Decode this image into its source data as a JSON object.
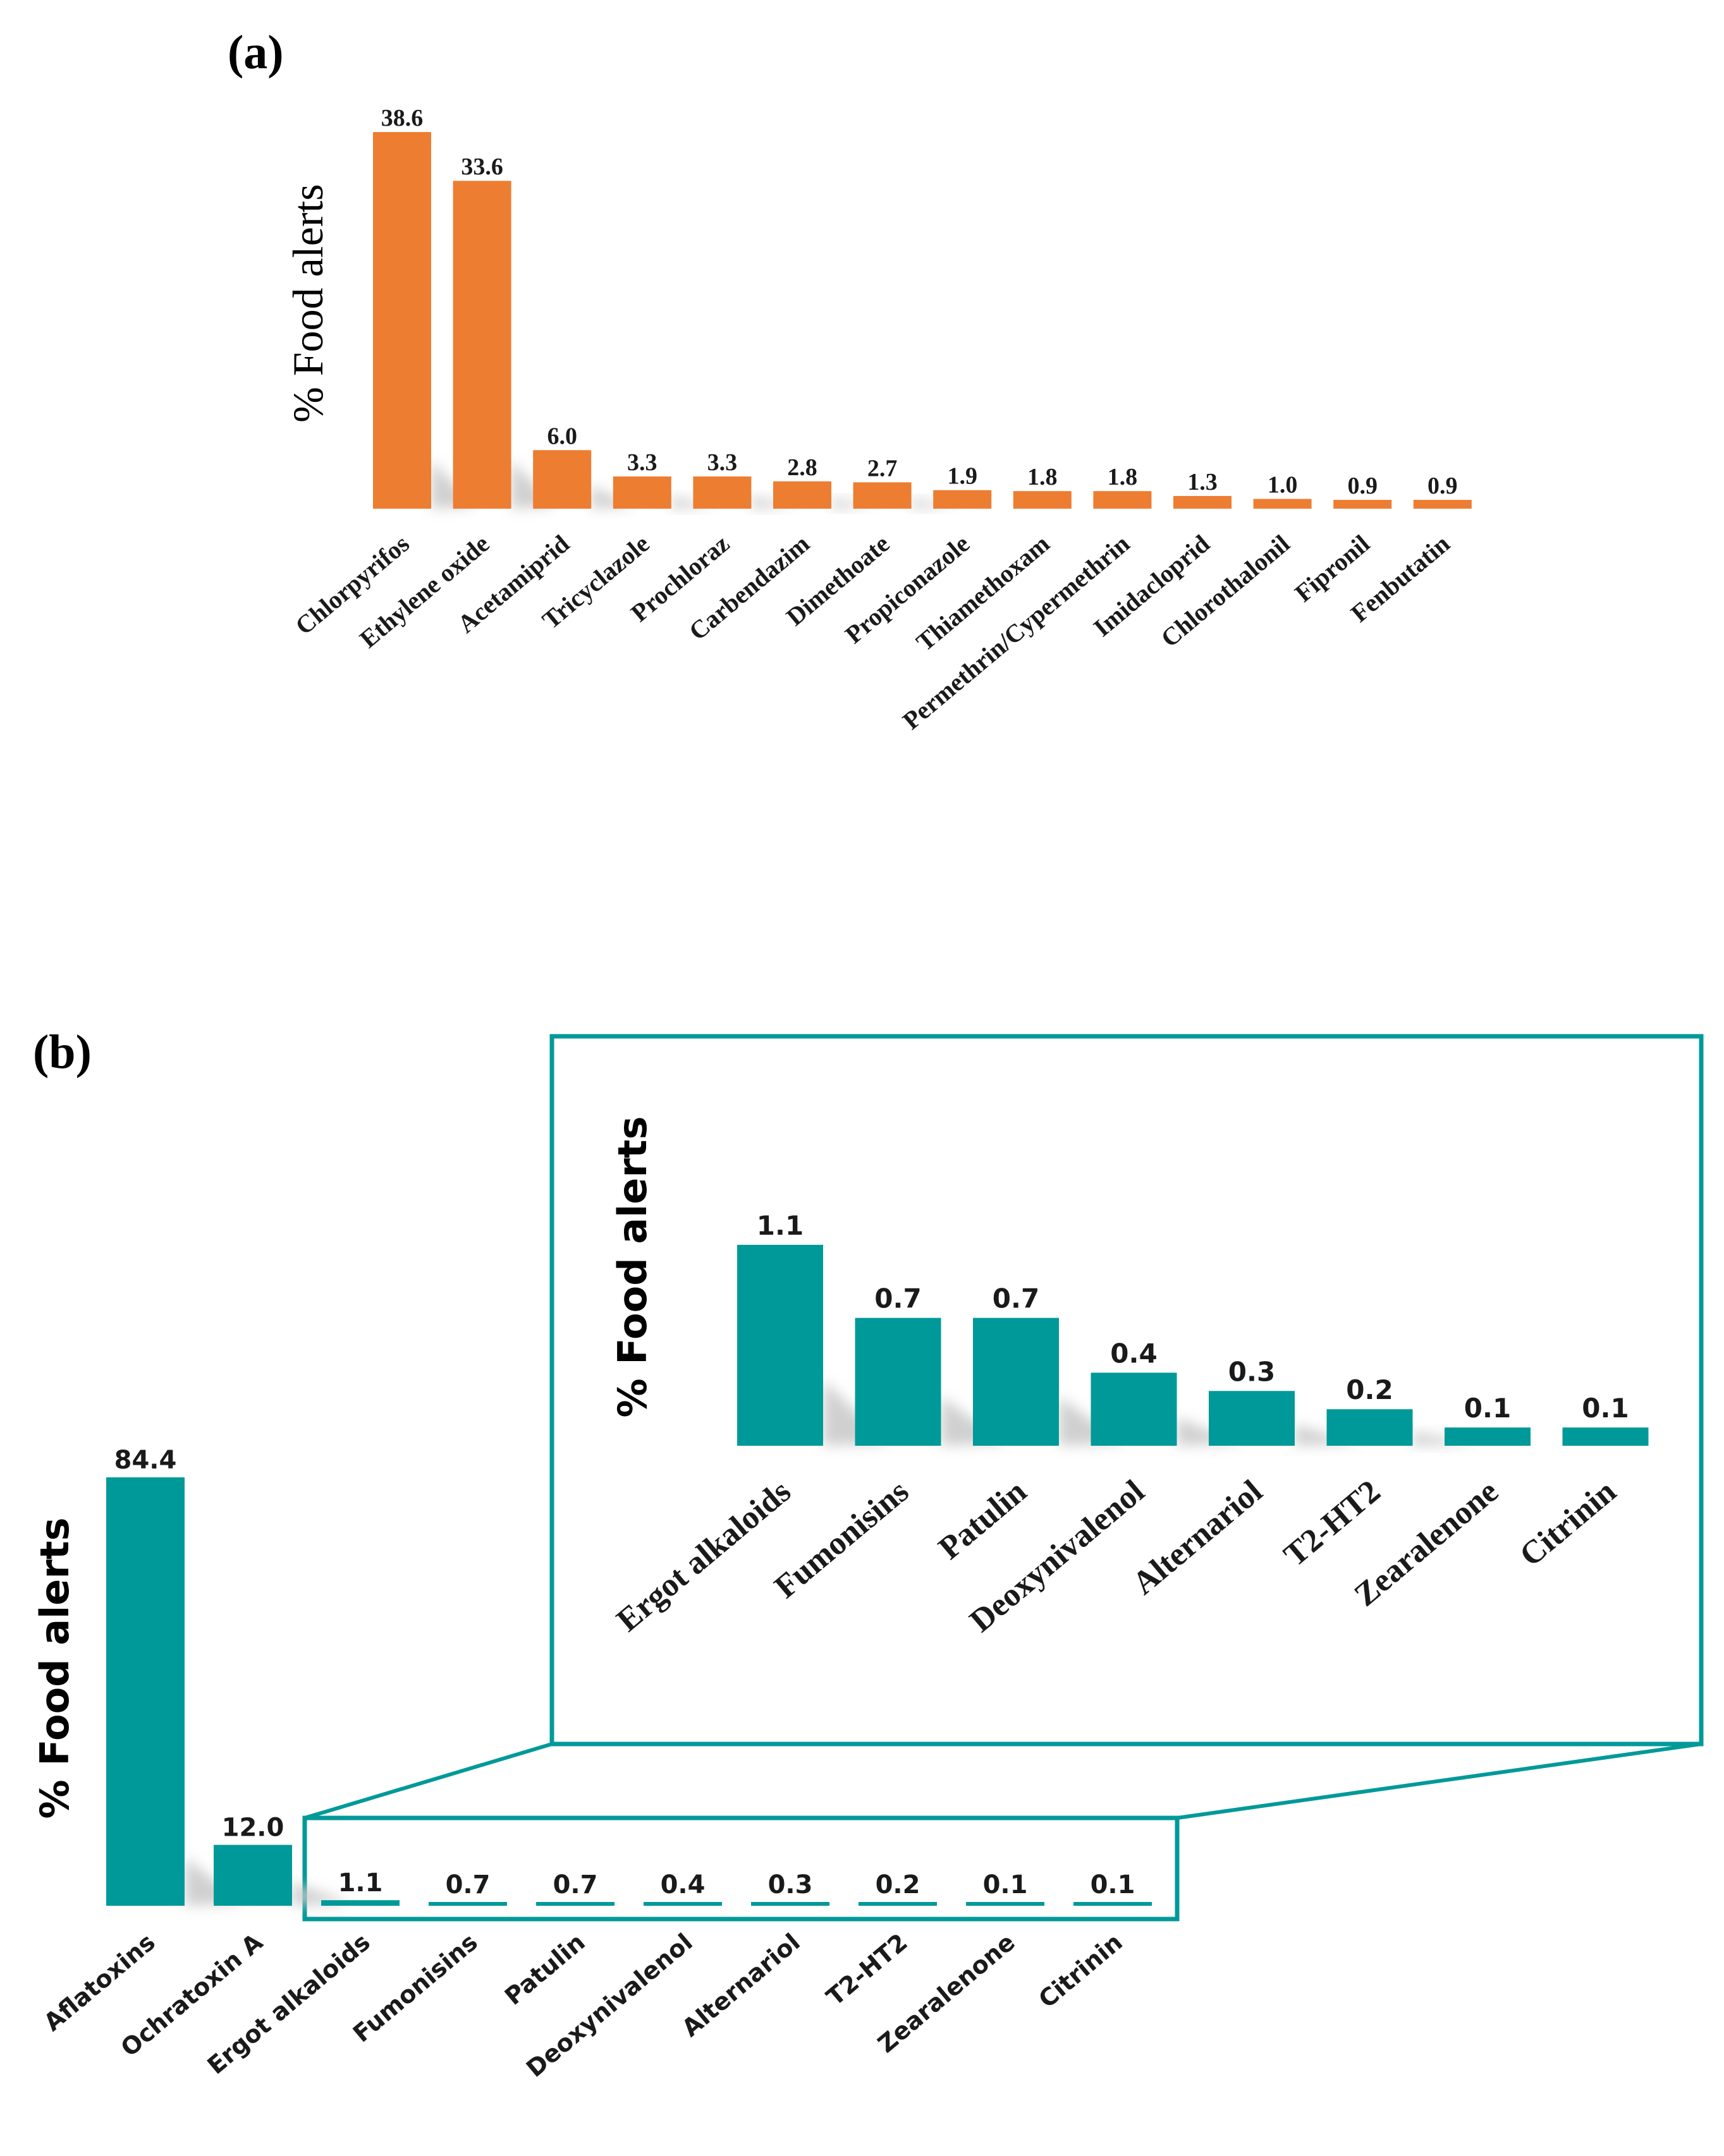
{
  "colors": {
    "orange": "#ED7D31",
    "teal": "#009999",
    "shadow": "#c8c8c8"
  },
  "chart_data": [
    {
      "type": "bar",
      "panel": "(a)",
      "title": "",
      "xlabel": "",
      "ylabel": "% Food alerts",
      "categories": [
        "Chlorpyrifos",
        "Ethylene oxide",
        "Acetamiprid",
        "Tricyclazole",
        "Prochloraz",
        "Carbendazim",
        "Dimethoate",
        "Propiconazole",
        "Thiamethoxam",
        "Permethrin/Cypermethrin",
        "Imidacloprid",
        "Chlorothalonil",
        "Fipronil",
        "Fenbutatin"
      ],
      "values": [
        38.6,
        33.6,
        6.0,
        3.3,
        3.3,
        2.8,
        2.7,
        1.9,
        1.8,
        1.8,
        1.3,
        1.0,
        0.9,
        0.9
      ],
      "labels": [
        "38.6",
        "33.6",
        "6.0",
        "3.3",
        "3.3",
        "2.8",
        "2.7",
        "1.9",
        "1.8",
        "1.8",
        "1.3",
        "1.0",
        "0.9",
        "0.9"
      ],
      "ylim": [
        0,
        38.6
      ]
    },
    {
      "type": "bar",
      "panel": "(b)",
      "title": "",
      "xlabel": "",
      "ylabel": "% Food alerts",
      "categories": [
        "Aflatoxins",
        "Ochratoxin A",
        "Ergot alkaloids",
        "Fumonisins",
        "Patulin",
        "Deoxynivalenol",
        "Alternariol",
        "T2-HT2",
        "Zearalenone",
        "Citrinin"
      ],
      "values": [
        84.4,
        12.0,
        1.1,
        0.7,
        0.7,
        0.4,
        0.3,
        0.2,
        0.1,
        0.1
      ],
      "labels": [
        "84.4",
        "12.0",
        "1.1",
        "0.7",
        "0.7",
        "0.4",
        "0.3",
        "0.2",
        "0.1",
        "0.1"
      ],
      "ylim": [
        0,
        84.4
      ]
    },
    {
      "type": "bar",
      "panel": "(b) inset",
      "title": "",
      "xlabel": "",
      "ylabel": "% Food alerts",
      "categories": [
        "Ergot alkaloids",
        "Fumonisins",
        "Patulin",
        "Deoxynivalenol",
        "Alternariol",
        "T2-HT2",
        "Zearalenone",
        "Citrinin"
      ],
      "values": [
        1.1,
        0.7,
        0.7,
        0.4,
        0.3,
        0.2,
        0.1,
        0.1
      ],
      "labels": [
        "1.1",
        "0.7",
        "0.7",
        "0.4",
        "0.3",
        "0.2",
        "0.1",
        "0.1"
      ],
      "ylim": [
        0,
        1.1
      ]
    }
  ]
}
